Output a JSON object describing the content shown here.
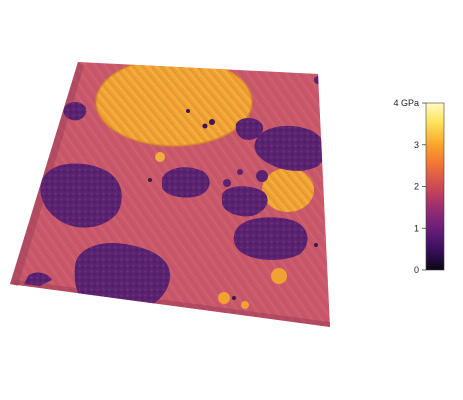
{
  "colorbar": {
    "ticks": [
      {
        "value": 0,
        "label": "0"
      },
      {
        "value": 1,
        "label": "1"
      },
      {
        "value": 2,
        "label": "2"
      },
      {
        "value": 3,
        "label": "3"
      },
      {
        "value": 4,
        "label": "4 GPa"
      }
    ],
    "min": 0,
    "max": 4,
    "colors": [
      "#0a0612",
      "#3a0f5e",
      "#6a1e7a",
      "#9c2f6e",
      "#cc4a55",
      "#ee7038",
      "#f9a52a",
      "#fde25a",
      "#fffbc2"
    ]
  },
  "surface": {
    "matrix_color": "#c9586b",
    "soft_phase_color": "#5e2473",
    "stiff_phase_color": "#f3a534"
  }
}
